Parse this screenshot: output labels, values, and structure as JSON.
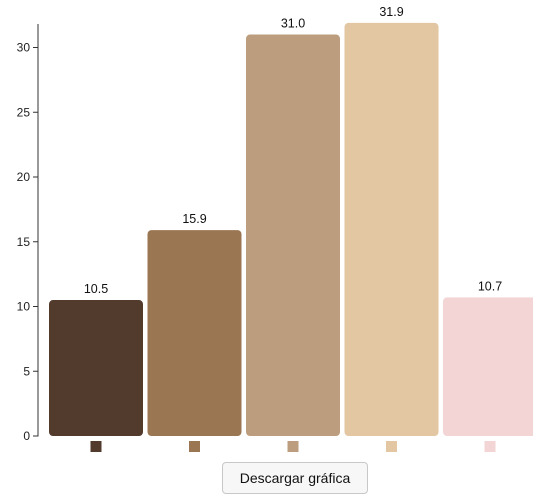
{
  "chart_data": {
    "type": "bar",
    "categories": [
      "",
      "",
      "",
      "",
      ""
    ],
    "values": [
      10.5,
      15.9,
      31.0,
      31.9,
      10.7
    ],
    "value_labels": [
      "10.5",
      "15.9",
      "31.0",
      "31.9",
      "10.7"
    ],
    "colors": [
      "#523a2c",
      "#9b7652",
      "#bc9e7e",
      "#e3c6a2",
      "#f3d5d6"
    ],
    "yticks": [
      0,
      5,
      10,
      15,
      20,
      25,
      30
    ],
    "ylim": [
      0,
      33
    ],
    "title": "",
    "xlabel": "",
    "ylabel": "",
    "grid": false,
    "legend": "color squares under each bar"
  },
  "download_button_label": "Descargar gráfica"
}
